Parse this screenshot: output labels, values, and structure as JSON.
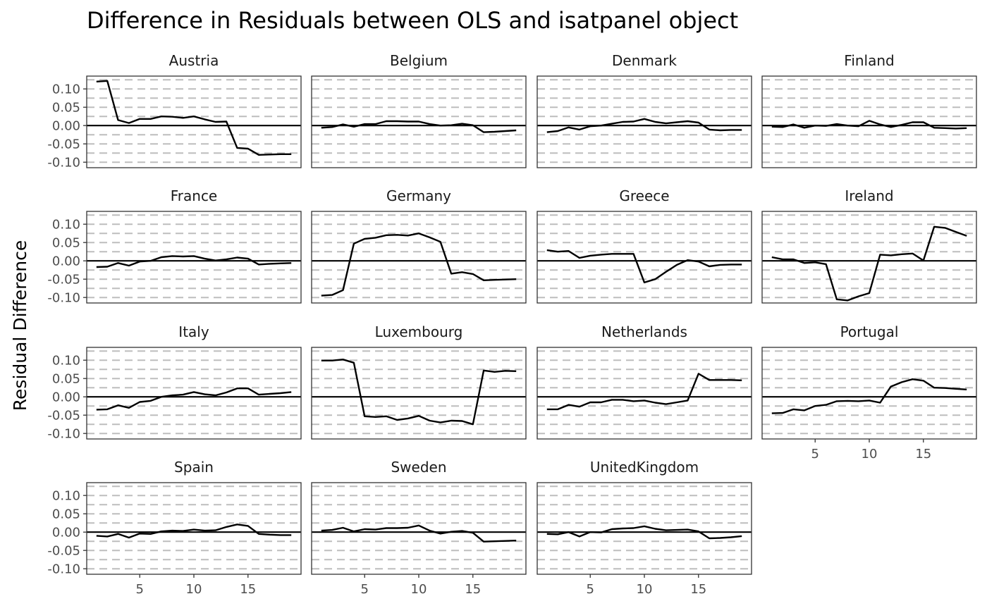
{
  "chart_data": {
    "type": "line",
    "title": "Difference in Residuals between OLS and isatpanel object",
    "xlabel": "",
    "ylabel": "Residual Difference",
    "xlim": [
      0.1,
      19.9
    ],
    "ylim": [
      -0.115,
      0.135
    ],
    "x_ticks": [
      5,
      10,
      15
    ],
    "y_ticks": [
      0.1,
      0.05,
      0.0,
      -0.05,
      -0.1
    ],
    "y_tick_labels": [
      "0.10",
      "0.05",
      "0.00",
      "-0.05",
      "-0.10"
    ],
    "reference_line": 0,
    "grid": "dashed horizontal major and minor",
    "x": [
      1,
      2,
      3,
      4,
      5,
      6,
      7,
      8,
      9,
      10,
      11,
      12,
      13,
      14,
      15,
      16,
      17,
      18,
      19
    ],
    "panels": [
      {
        "name": "Austria",
        "values": [
          0.12,
          0.122,
          0.015,
          0.007,
          0.018,
          0.018,
          0.025,
          0.024,
          0.021,
          0.025,
          0.017,
          0.01,
          0.011,
          -0.061,
          -0.063,
          -0.08,
          -0.079,
          -0.078,
          -0.078
        ]
      },
      {
        "name": "Belgium",
        "values": [
          -0.006,
          -0.004,
          0.003,
          -0.003,
          0.004,
          0.004,
          0.012,
          0.012,
          0.011,
          0.011,
          0.004,
          0.0,
          0.001,
          0.005,
          0.001,
          -0.018,
          -0.017,
          -0.015,
          -0.013
        ]
      },
      {
        "name": "Denmark",
        "values": [
          -0.018,
          -0.015,
          -0.005,
          -0.011,
          -0.002,
          0.0,
          0.005,
          0.01,
          0.011,
          0.018,
          0.01,
          0.006,
          0.009,
          0.012,
          0.008,
          -0.011,
          -0.013,
          -0.012,
          -0.012
        ]
      },
      {
        "name": "Finland",
        "values": [
          -0.003,
          -0.004,
          0.003,
          -0.006,
          0.0,
          -0.001,
          0.004,
          0.0,
          -0.002,
          0.013,
          0.003,
          -0.004,
          0.002,
          0.009,
          0.009,
          -0.006,
          -0.007,
          -0.008,
          -0.007
        ]
      },
      {
        "name": "France",
        "values": [
          -0.017,
          -0.016,
          -0.006,
          -0.013,
          -0.002,
          0.0,
          0.01,
          0.013,
          0.012,
          0.013,
          0.006,
          0.001,
          0.004,
          0.009,
          0.006,
          -0.01,
          -0.008,
          -0.007,
          -0.006
        ]
      },
      {
        "name": "Germany",
        "values": [
          -0.095,
          -0.093,
          -0.08,
          0.047,
          0.06,
          0.063,
          0.07,
          0.071,
          0.069,
          0.075,
          0.064,
          0.052,
          -0.035,
          -0.031,
          -0.036,
          -0.053,
          -0.052,
          -0.051,
          -0.05
        ]
      },
      {
        "name": "Greece",
        "values": [
          0.029,
          0.025,
          0.027,
          0.008,
          0.014,
          0.017,
          0.019,
          0.019,
          0.019,
          -0.059,
          -0.05,
          -0.03,
          -0.011,
          0.002,
          -0.002,
          -0.015,
          -0.011,
          -0.01,
          -0.01
        ]
      },
      {
        "name": "Ireland",
        "values": [
          0.01,
          0.004,
          0.004,
          -0.006,
          -0.004,
          -0.009,
          -0.105,
          -0.108,
          -0.097,
          -0.088,
          0.017,
          0.015,
          0.018,
          0.02,
          0.001,
          0.093,
          0.09,
          0.079,
          0.068
        ]
      },
      {
        "name": "Italy",
        "values": [
          -0.035,
          -0.034,
          -0.023,
          -0.03,
          -0.014,
          -0.011,
          0.0,
          0.004,
          0.006,
          0.013,
          0.007,
          0.004,
          0.012,
          0.023,
          0.023,
          0.006,
          0.008,
          0.01,
          0.013
        ]
      },
      {
        "name": "Luxembourg",
        "values": [
          0.099,
          0.099,
          0.102,
          0.093,
          -0.053,
          -0.055,
          -0.053,
          -0.063,
          -0.059,
          -0.052,
          -0.065,
          -0.07,
          -0.065,
          -0.066,
          -0.075,
          0.072,
          0.068,
          0.071,
          0.07
        ]
      },
      {
        "name": "Netherlands",
        "values": [
          -0.034,
          -0.034,
          -0.022,
          -0.027,
          -0.015,
          -0.015,
          -0.008,
          -0.008,
          -0.012,
          -0.01,
          -0.016,
          -0.02,
          -0.015,
          -0.01,
          0.063,
          0.046,
          0.046,
          0.046,
          0.045
        ]
      },
      {
        "name": "Portugal",
        "values": [
          -0.045,
          -0.044,
          -0.034,
          -0.037,
          -0.025,
          -0.022,
          -0.012,
          -0.011,
          -0.012,
          -0.01,
          -0.016,
          0.028,
          0.04,
          0.048,
          0.044,
          0.025,
          0.024,
          0.022,
          0.02
        ]
      },
      {
        "name": "Spain",
        "values": [
          -0.01,
          -0.012,
          -0.005,
          -0.015,
          -0.004,
          -0.005,
          0.002,
          0.004,
          0.003,
          0.007,
          0.004,
          0.005,
          0.014,
          0.021,
          0.017,
          -0.005,
          -0.007,
          -0.008,
          -0.008
        ]
      },
      {
        "name": "Sweden",
        "values": [
          0.004,
          0.006,
          0.012,
          0.002,
          0.008,
          0.007,
          0.011,
          0.011,
          0.012,
          0.018,
          0.004,
          -0.004,
          0.001,
          0.003,
          -0.002,
          -0.026,
          -0.025,
          -0.024,
          -0.023
        ]
      },
      {
        "name": "UnitedKingdom",
        "values": [
          -0.005,
          -0.006,
          0.0,
          -0.012,
          0.0,
          -0.001,
          0.008,
          0.01,
          0.011,
          0.016,
          0.009,
          0.005,
          0.006,
          0.007,
          0.002,
          -0.017,
          -0.016,
          -0.014,
          -0.011
        ]
      }
    ]
  }
}
